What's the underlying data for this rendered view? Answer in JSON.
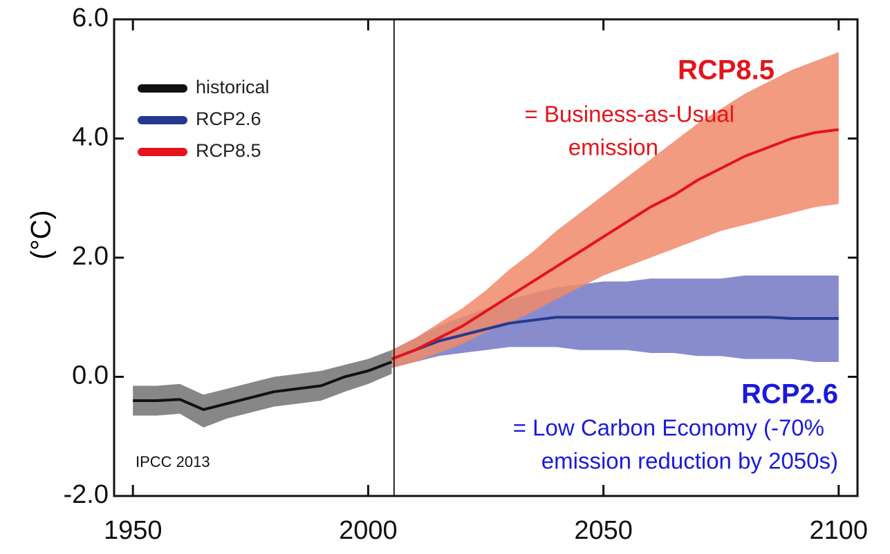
{
  "chart_data": {
    "type": "line",
    "y_label": "(°C)",
    "xlim": [
      1946,
      2104
    ],
    "ylim": [
      -2,
      6
    ],
    "xticks": [
      1950,
      2000,
      2050,
      2100
    ],
    "yticks": [
      {
        "value": 6,
        "label": "6.0"
      },
      {
        "value": 4,
        "label": "4.0"
      },
      {
        "value": 2,
        "label": "2.0"
      },
      {
        "value": 0,
        "label": "0.0"
      },
      {
        "value": -2,
        "label": "-2.0"
      }
    ],
    "vline": 2005.5,
    "legend": "upper left",
    "series": [
      {
        "name": "historical",
        "color": "#111111",
        "band_color": "#7a7a7a",
        "x": [
          1950,
          1955,
          1960,
          1965,
          1970,
          1975,
          1980,
          1985,
          1990,
          1995,
          2000,
          2005
        ],
        "values": [
          -0.4,
          -0.4,
          -0.38,
          -0.55,
          -0.45,
          -0.35,
          -0.25,
          -0.2,
          -0.15,
          0.0,
          0.1,
          0.25
        ],
        "lower": [
          -0.65,
          -0.65,
          -0.62,
          -0.85,
          -0.7,
          -0.6,
          -0.5,
          -0.45,
          -0.4,
          -0.25,
          -0.12,
          0.05
        ],
        "upper": [
          -0.15,
          -0.15,
          -0.12,
          -0.3,
          -0.2,
          -0.1,
          0.0,
          0.05,
          0.1,
          0.2,
          0.3,
          0.45
        ]
      },
      {
        "name": "RCP2.6",
        "color": "#253a8e",
        "band_color": "#7b7fc6",
        "x": [
          2005,
          2010,
          2015,
          2020,
          2025,
          2030,
          2035,
          2040,
          2045,
          2050,
          2055,
          2060,
          2065,
          2070,
          2075,
          2080,
          2085,
          2090,
          2095,
          2100
        ],
        "values": [
          0.3,
          0.45,
          0.6,
          0.7,
          0.8,
          0.9,
          0.95,
          1.0,
          1.0,
          1.0,
          1.0,
          1.0,
          1.0,
          1.0,
          1.0,
          1.0,
          1.0,
          0.98,
          0.98,
          0.98
        ],
        "lower": [
          0.15,
          0.25,
          0.35,
          0.4,
          0.45,
          0.5,
          0.5,
          0.5,
          0.45,
          0.45,
          0.45,
          0.4,
          0.4,
          0.35,
          0.35,
          0.3,
          0.3,
          0.3,
          0.25,
          0.25
        ],
        "upper": [
          0.45,
          0.65,
          0.85,
          1.0,
          1.15,
          1.3,
          1.4,
          1.5,
          1.55,
          1.6,
          1.6,
          1.65,
          1.65,
          1.65,
          1.65,
          1.7,
          1.7,
          1.7,
          1.7,
          1.7
        ]
      },
      {
        "name": "RCP8.5",
        "color": "#e3141b",
        "band_color": "#f08a6a",
        "x": [
          2005,
          2010,
          2015,
          2020,
          2025,
          2030,
          2035,
          2040,
          2045,
          2050,
          2055,
          2060,
          2065,
          2070,
          2075,
          2080,
          2085,
          2090,
          2095,
          2100
        ],
        "values": [
          0.3,
          0.45,
          0.65,
          0.85,
          1.1,
          1.35,
          1.6,
          1.85,
          2.1,
          2.35,
          2.6,
          2.85,
          3.05,
          3.3,
          3.5,
          3.7,
          3.85,
          4.0,
          4.1,
          4.15
        ],
        "lower": [
          0.15,
          0.25,
          0.4,
          0.55,
          0.75,
          0.9,
          1.1,
          1.3,
          1.5,
          1.7,
          1.85,
          2.0,
          2.15,
          2.3,
          2.45,
          2.55,
          2.65,
          2.75,
          2.85,
          2.9
        ],
        "upper": [
          0.45,
          0.65,
          0.9,
          1.15,
          1.45,
          1.8,
          2.1,
          2.45,
          2.75,
          3.05,
          3.35,
          3.65,
          3.95,
          4.25,
          4.5,
          4.75,
          4.95,
          5.15,
          5.3,
          5.45
        ]
      }
    ],
    "annotations": [
      "RCP8.5",
      "= Business-as-Usual",
      "emission",
      "RCP2.6",
      "= Low Carbon Economy (-70%",
      "emission reduction by 2050s)",
      "IPCC 2013"
    ]
  }
}
